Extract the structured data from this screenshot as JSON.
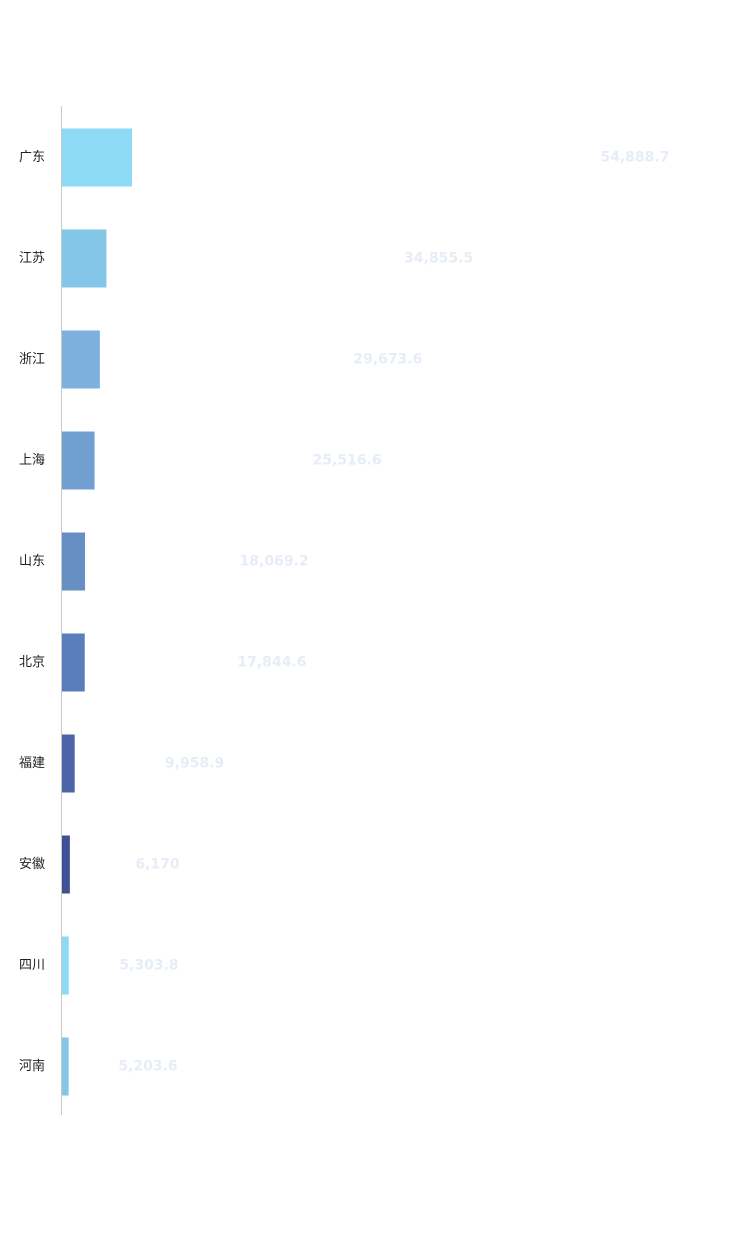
{
  "chart_data": {
    "type": "bar",
    "orientation": "horizontal",
    "categories": [
      "广东",
      "江苏",
      "浙江",
      "上海",
      "山东",
      "北京",
      "福建",
      "安徽",
      "四川",
      "河南"
    ],
    "values": [
      54888.7,
      34855.5,
      29673.6,
      25516.6,
      18069.2,
      17844.6,
      9958.9,
      6170,
      5303.8,
      5203.6
    ],
    "value_labels": [
      "54,888.7",
      "34,855.5",
      "29,673.6",
      "25,516.6",
      "18,069.2",
      "17,844.6",
      "9,958.9",
      "6,170",
      "5,303.8",
      "5,203.6"
    ],
    "colors": [
      "#8cdaf3",
      "#84c6e8",
      "#7bb1dc",
      "#71a0d0",
      "#6690c4",
      "#5b7dbb",
      "#4c64a8",
      "#3f5096",
      "#8cdaf3",
      "#84c6e8"
    ]
  }
}
